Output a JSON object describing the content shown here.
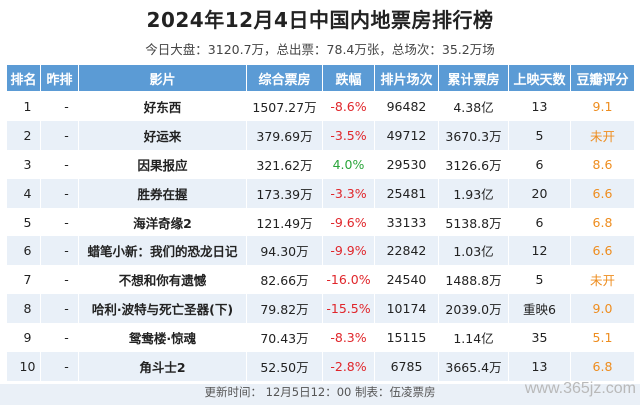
{
  "title": "2024年12月4日中国内地票房排行榜",
  "summary": {
    "text": "今日大盘：3120.7万，总出票：78.4万张，总场次：35.2万场"
  },
  "table": {
    "headers": [
      "排名",
      "昨排",
      "影片",
      "综合票房",
      "跌幅",
      "排片场次",
      "累计票房",
      "上映天数",
      "豆瓣评分"
    ],
    "rows": [
      {
        "rank": "1",
        "prev": "-",
        "film": "好东西",
        "gross": "1507.27万",
        "change": "-8.6%",
        "change_dir": "neg",
        "shows": "96482",
        "total": "4.38亿",
        "days": "13",
        "score": "9.1"
      },
      {
        "rank": "2",
        "prev": "-",
        "film": "好运来",
        "gross": "379.69万",
        "change": "-3.5%",
        "change_dir": "neg",
        "shows": "49712",
        "total": "3670.3万",
        "days": "5",
        "score": "未开"
      },
      {
        "rank": "3",
        "prev": "-",
        "film": "因果报应",
        "gross": "321.62万",
        "change": "4.0%",
        "change_dir": "pos",
        "shows": "29530",
        "total": "3126.6万",
        "days": "6",
        "score": "8.6"
      },
      {
        "rank": "4",
        "prev": "-",
        "film": "胜券在握",
        "gross": "173.39万",
        "change": "-3.3%",
        "change_dir": "neg",
        "shows": "25481",
        "total": "1.93亿",
        "days": "20",
        "score": "6.6"
      },
      {
        "rank": "5",
        "prev": "-",
        "film": "海洋奇缘2",
        "gross": "121.49万",
        "change": "-9.6%",
        "change_dir": "neg",
        "shows": "33133",
        "total": "5138.8万",
        "days": "6",
        "score": "6.8"
      },
      {
        "rank": "6",
        "prev": "-",
        "film": "蜡笔小新：我们的恐龙日记",
        "gross": "94.30万",
        "change": "-9.9%",
        "change_dir": "neg",
        "shows": "22842",
        "total": "1.03亿",
        "days": "12",
        "score": "6.6"
      },
      {
        "rank": "7",
        "prev": "-",
        "film": "不想和你有遗憾",
        "gross": "82.66万",
        "change": "-16.0%",
        "change_dir": "neg",
        "shows": "24540",
        "total": "1488.8万",
        "days": "5",
        "score": "未开"
      },
      {
        "rank": "8",
        "prev": "-",
        "film": "哈利·波特与死亡圣器(下)",
        "gross": "79.82万",
        "change": "-15.5%",
        "change_dir": "neg",
        "shows": "10174",
        "total": "2039.0万",
        "days": "重映6",
        "score": "9.0"
      },
      {
        "rank": "9",
        "prev": "-",
        "film": "鸳鸯楼·惊魂",
        "gross": "70.43万",
        "change": "-8.3%",
        "change_dir": "neg",
        "shows": "15115",
        "total": "1.14亿",
        "days": "35",
        "score": "5.1"
      },
      {
        "rank": "10",
        "prev": "-",
        "film": "角斗士2",
        "gross": "52.50万",
        "change": "-2.8%",
        "change_dir": "neg",
        "shows": "6785",
        "total": "3665.4万",
        "days": "13",
        "score": "6.8"
      }
    ]
  },
  "footer": "更新时间：  12月5日12：00  制表：伍凌票房",
  "watermark": "www.365jz.com",
  "colors": {
    "header_bg": "#5b9bd5",
    "negative": "#e0262b",
    "positive": "#2aa53a",
    "score": "#ee8d1f",
    "stripe": "#e9f0f8"
  }
}
